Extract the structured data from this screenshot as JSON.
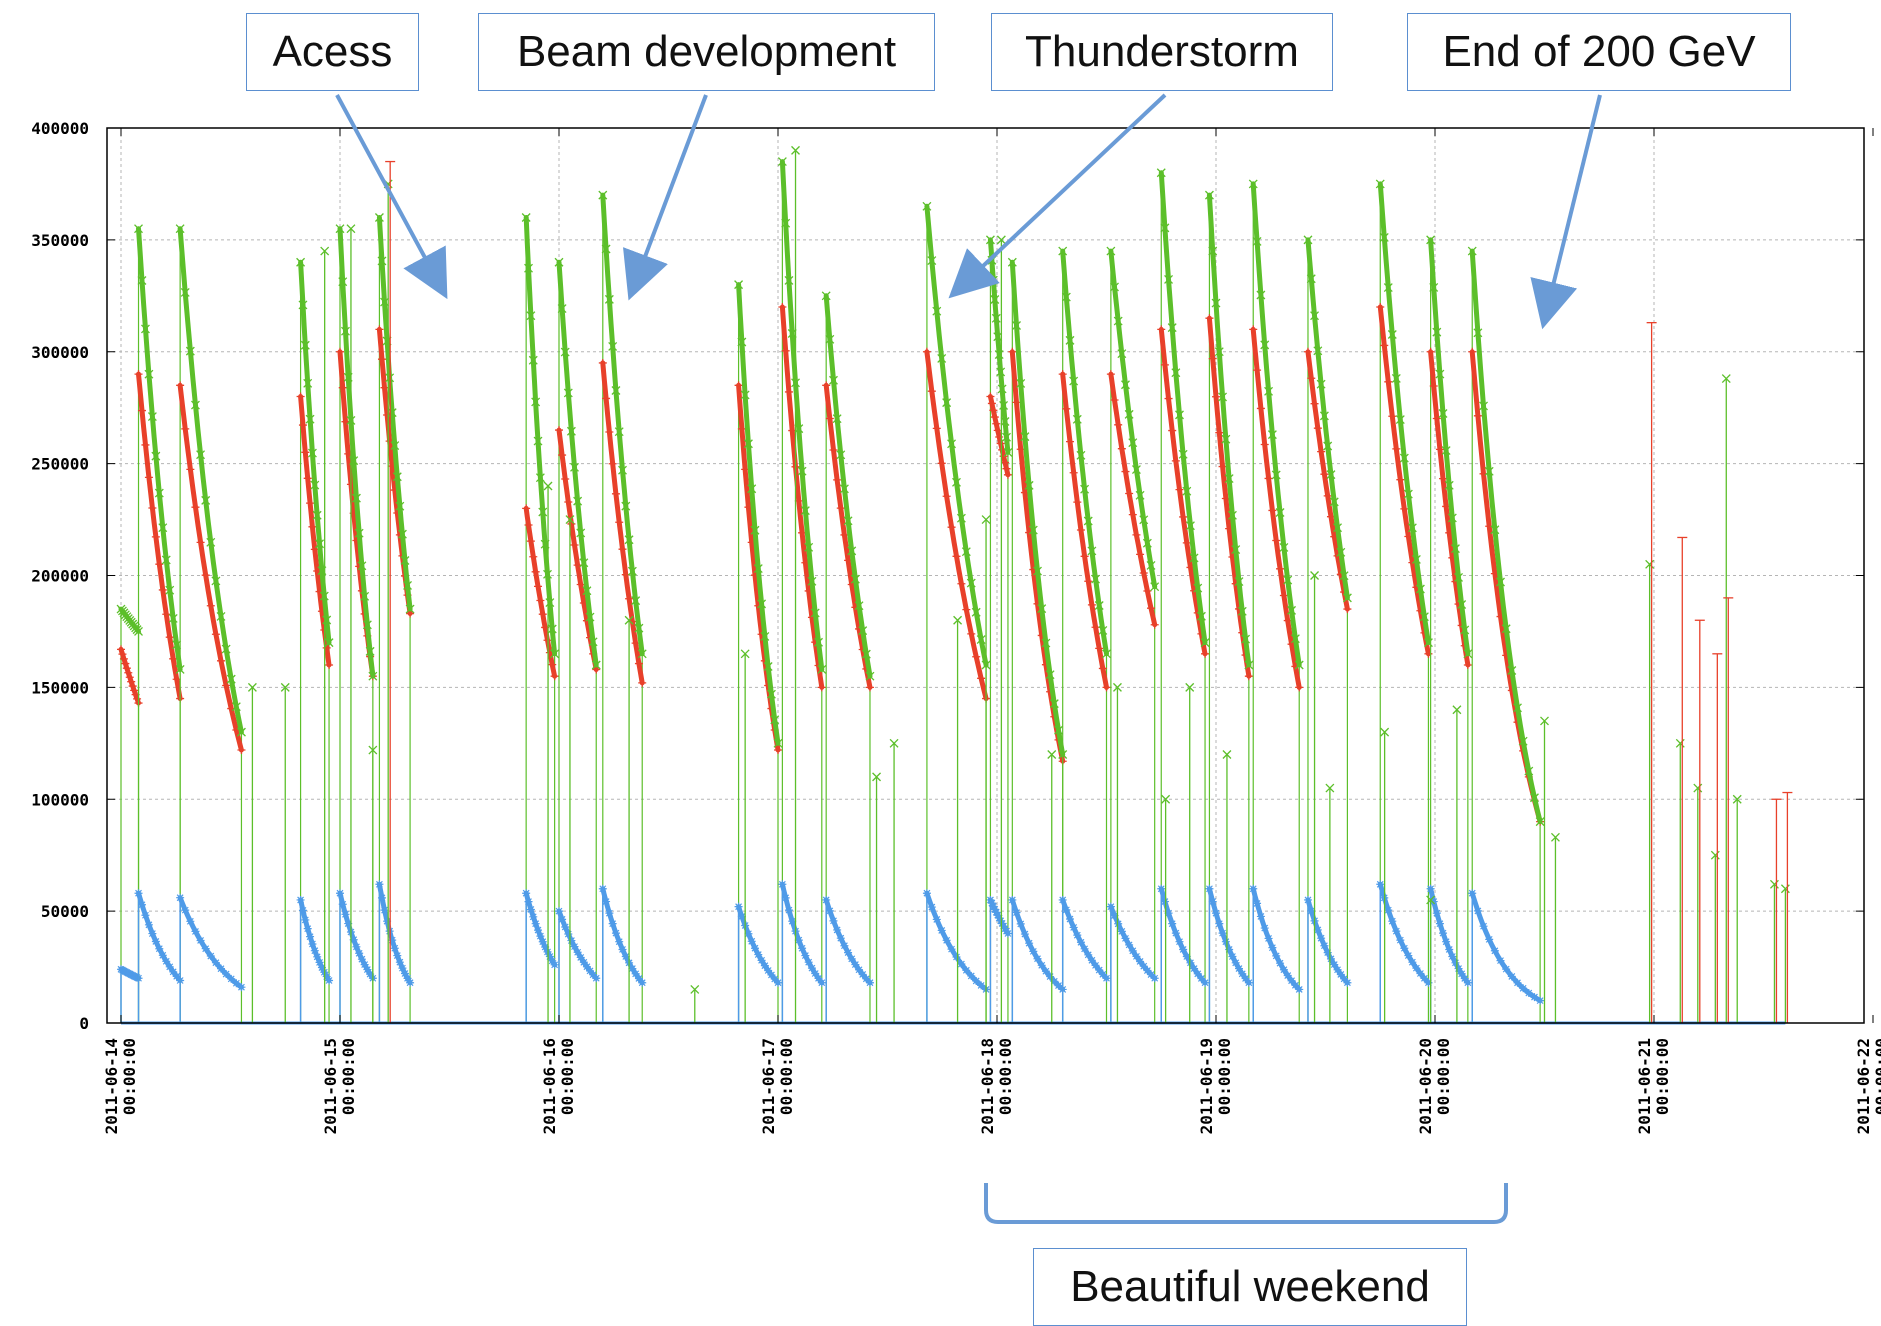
{
  "chart_data": {
    "type": "scatter",
    "title": "",
    "xlabel": "",
    "ylabel": "",
    "ylim": [
      0,
      400000
    ],
    "yticks": [
      "0",
      "50000",
      "100000",
      "150000",
      "200000",
      "250000",
      "300000",
      "350000",
      "400000"
    ],
    "xticks": [
      [
        "2011-06-14",
        "00:00:00"
      ],
      [
        "2011-06-15",
        "00:00:00"
      ],
      [
        "2011-06-16",
        "00:00:00"
      ],
      [
        "2011-06-17",
        "00:00:00"
      ],
      [
        "2011-06-18",
        "00:00:00"
      ],
      [
        "2011-06-19",
        "00:00:00"
      ],
      [
        "2011-06-20",
        "00:00:00"
      ],
      [
        "2011-06-21",
        "00:00:00"
      ],
      [
        "2011-06-22",
        "00:00:00"
      ]
    ],
    "xlim_days": [
      0,
      8
    ],
    "grid": true,
    "colors": {
      "green": "#5cbf2a",
      "red": "#e8402a",
      "blue": "#4f9be8",
      "callout_border": "#5b8fd0",
      "arrow": "#6a9bd6"
    },
    "fills": [
      {
        "start": 0.0,
        "end": 0.08,
        "green": [
          185000,
          175000
        ],
        "red": [
          167000,
          143000
        ],
        "blue": [
          24000,
          20000
        ]
      },
      {
        "start": 0.08,
        "end": 0.27,
        "green": [
          355000,
          158000
        ],
        "red": [
          290000,
          145000
        ],
        "blue": [
          58000,
          19000
        ]
      },
      {
        "start": 0.27,
        "end": 0.55,
        "green": [
          355000,
          130000
        ],
        "red": [
          285000,
          122000
        ],
        "blue": [
          56000,
          16000
        ]
      },
      {
        "start": 0.82,
        "end": 0.95,
        "green": [
          340000,
          170000
        ],
        "red": [
          280000,
          160000
        ],
        "blue": [
          55000,
          19000
        ]
      },
      {
        "start": 1.0,
        "end": 1.15,
        "green": [
          355000,
          155000
        ],
        "red": [
          300000,
          155000
        ],
        "blue": [
          58000,
          20000
        ]
      },
      {
        "start": 1.18,
        "end": 1.32,
        "green": [
          360000,
          185000
        ],
        "red": [
          310000,
          183000
        ],
        "blue": [
          62000,
          18000
        ]
      },
      {
        "start": 1.85,
        "end": 1.98,
        "green": [
          360000,
          165000
        ],
        "red": [
          230000,
          155000
        ],
        "blue": [
          58000,
          26000
        ]
      },
      {
        "start": 2.0,
        "end": 2.17,
        "green": [
          340000,
          160000
        ],
        "red": [
          265000,
          158000
        ],
        "blue": [
          50000,
          20000
        ]
      },
      {
        "start": 2.2,
        "end": 2.38,
        "green": [
          370000,
          165000
        ],
        "red": [
          295000,
          152000
        ],
        "blue": [
          60000,
          18000
        ]
      },
      {
        "start": 2.82,
        "end": 3.0,
        "green": [
          330000,
          125000
        ],
        "red": [
          285000,
          122000
        ],
        "blue": [
          52000,
          18000
        ]
      },
      {
        "start": 3.02,
        "end": 3.2,
        "green": [
          385000,
          158000
        ],
        "red": [
          320000,
          150000
        ],
        "blue": [
          62000,
          18000
        ]
      },
      {
        "start": 3.22,
        "end": 3.42,
        "green": [
          325000,
          155000
        ],
        "red": [
          285000,
          150000
        ],
        "blue": [
          55000,
          18000
        ]
      },
      {
        "start": 3.68,
        "end": 3.95,
        "green": [
          365000,
          160000
        ],
        "red": [
          300000,
          145000
        ],
        "blue": [
          58000,
          15000
        ]
      },
      {
        "start": 3.97,
        "end": 4.05,
        "green": [
          350000,
          255000
        ],
        "red": [
          280000,
          245000
        ],
        "blue": [
          55000,
          40000
        ]
      },
      {
        "start": 4.07,
        "end": 4.3,
        "green": [
          340000,
          120000
        ],
        "red": [
          300000,
          117000
        ],
        "blue": [
          55000,
          15000
        ]
      },
      {
        "start": 4.3,
        "end": 4.5,
        "green": [
          345000,
          165000
        ],
        "red": [
          290000,
          150000
        ],
        "blue": [
          55000,
          20000
        ]
      },
      {
        "start": 4.52,
        "end": 4.72,
        "green": [
          345000,
          195000
        ],
        "red": [
          290000,
          178000
        ],
        "blue": [
          52000,
          20000
        ]
      },
      {
        "start": 4.75,
        "end": 4.95,
        "green": [
          380000,
          170000
        ],
        "red": [
          310000,
          165000
        ],
        "blue": [
          60000,
          18000
        ]
      },
      {
        "start": 4.97,
        "end": 5.15,
        "green": [
          370000,
          160000
        ],
        "red": [
          315000,
          155000
        ],
        "blue": [
          60000,
          18000
        ]
      },
      {
        "start": 5.17,
        "end": 5.38,
        "green": [
          375000,
          160000
        ],
        "red": [
          310000,
          150000
        ],
        "blue": [
          60000,
          15000
        ]
      },
      {
        "start": 5.42,
        "end": 5.6,
        "green": [
          350000,
          190000
        ],
        "red": [
          300000,
          185000
        ],
        "blue": [
          55000,
          18000
        ]
      },
      {
        "start": 5.75,
        "end": 5.97,
        "green": [
          375000,
          170000
        ],
        "red": [
          320000,
          165000
        ],
        "blue": [
          62000,
          18000
        ]
      },
      {
        "start": 5.98,
        "end": 6.15,
        "green": [
          350000,
          165000
        ],
        "red": [
          300000,
          160000
        ],
        "blue": [
          60000,
          18000
        ]
      },
      {
        "start": 6.17,
        "end": 6.48,
        "green": [
          345000,
          90000
        ],
        "red": [
          300000,
          90000
        ],
        "blue": [
          58000,
          10000
        ]
      }
    ],
    "spikes": [
      {
        "x": 0.6,
        "green": 150000
      },
      {
        "x": 0.75,
        "green": 150000
      },
      {
        "x": 0.93,
        "green": 345000
      },
      {
        "x": 1.05,
        "green": 355000
      },
      {
        "x": 1.15,
        "green": 122000
      },
      {
        "x": 1.22,
        "red": 385000,
        "green": 375000
      },
      {
        "x": 1.95,
        "green": 240000
      },
      {
        "x": 2.05,
        "green": 225000
      },
      {
        "x": 2.32,
        "green": 180000
      },
      {
        "x": 2.62,
        "green": 15000
      },
      {
        "x": 2.85,
        "green": 165000
      },
      {
        "x": 3.08,
        "green": 390000
      },
      {
        "x": 3.45,
        "green": 110000
      },
      {
        "x": 3.53,
        "green": 125000
      },
      {
        "x": 3.82,
        "green": 180000
      },
      {
        "x": 3.95,
        "green": 225000
      },
      {
        "x": 4.02,
        "green": 350000
      },
      {
        "x": 4.25,
        "green": 120000
      },
      {
        "x": 4.55,
        "green": 150000
      },
      {
        "x": 4.77,
        "green": 100000
      },
      {
        "x": 4.88,
        "green": 150000
      },
      {
        "x": 5.05,
        "green": 120000
      },
      {
        "x": 5.45,
        "green": 200000
      },
      {
        "x": 5.52,
        "green": 105000
      },
      {
        "x": 5.77,
        "green": 130000
      },
      {
        "x": 5.98,
        "green": 55000
      },
      {
        "x": 6.1,
        "green": 140000
      },
      {
        "x": 6.5,
        "green": 135000
      },
      {
        "x": 6.55,
        "green": 83000
      },
      {
        "x": 6.98,
        "red": 313000,
        "green": 205000
      },
      {
        "x": 7.12,
        "red": 217000,
        "green": 125000
      },
      {
        "x": 7.2,
        "red": 180000,
        "green": 105000
      },
      {
        "x": 7.28,
        "red": 165000,
        "green": 75000
      },
      {
        "x": 7.33,
        "red": 190000,
        "green": 288000
      },
      {
        "x": 7.38,
        "green": 100000
      },
      {
        "x": 7.55,
        "red": 100000,
        "green": 62000
      },
      {
        "x": 7.6,
        "red": 103000,
        "green": 60000
      }
    ]
  },
  "annotations": {
    "acess": "Acess",
    "beam_development": "Beam development",
    "thunderstorm": "Thunderstorm",
    "end_200gev": "End of 200 GeV",
    "beautiful_weekend": "Beautiful weekend"
  }
}
